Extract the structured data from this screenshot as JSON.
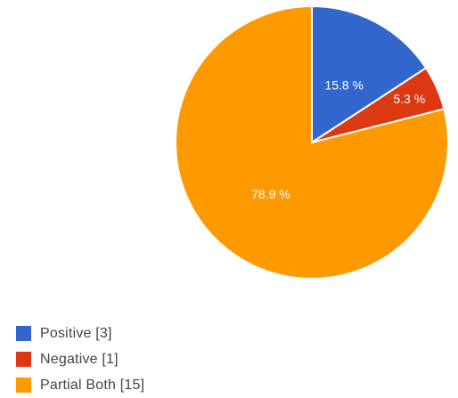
{
  "chart_data": {
    "type": "pie",
    "slices": [
      {
        "label": "Positive",
        "count": 3,
        "percent": 15.8,
        "percent_label": "15.8 %",
        "color": "#3366cc",
        "legend": "Positive  [3]"
      },
      {
        "label": "Negative",
        "count": 1,
        "percent": 5.3,
        "percent_label": "5.3 %",
        "color": "#dc3912",
        "legend": "Negative  [1]"
      },
      {
        "label": "Partial Both",
        "count": 15,
        "percent": 78.9,
        "percent_label": "78.9 %",
        "color": "#ff9900",
        "legend": "Partial Both  [15]"
      }
    ],
    "start_angle": "top (12 o'clock), clockwise",
    "legend_position": "bottom-left"
  }
}
